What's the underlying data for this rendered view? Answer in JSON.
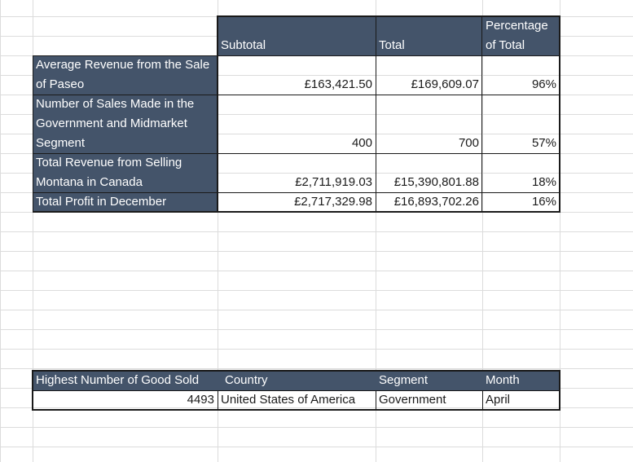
{
  "summary_table": {
    "columns": {
      "subtotal": "Subtotal",
      "total": "Total",
      "percentage_line1": "Percentage",
      "percentage_line2": "of Total"
    },
    "rows": [
      {
        "label": "Average Revenue from the Sale of Paseo",
        "subtotal": "£163,421.50",
        "total": "£169,609.07",
        "percentage": "96%"
      },
      {
        "label": "Number of Sales Made in the Government and Midmarket Segment",
        "subtotal": "400",
        "total": "700",
        "percentage": "57%"
      },
      {
        "label": "Total Revenue from Selling Montana in Canada",
        "subtotal": "£2,711,919.03",
        "total": "£15,390,801.88",
        "percentage": "18%"
      },
      {
        "label": "Total Profit in December",
        "subtotal": "£2,717,329.98",
        "total": "£16,893,702.26",
        "percentage": "16%"
      }
    ]
  },
  "detail_table": {
    "headers": {
      "goods": "Highest Number of Good Sold",
      "country": "Country",
      "segment": "Segment",
      "month": "Month"
    },
    "row": {
      "goods": "4493",
      "country": "United States of America",
      "segment": "Government",
      "month": "April"
    }
  }
}
